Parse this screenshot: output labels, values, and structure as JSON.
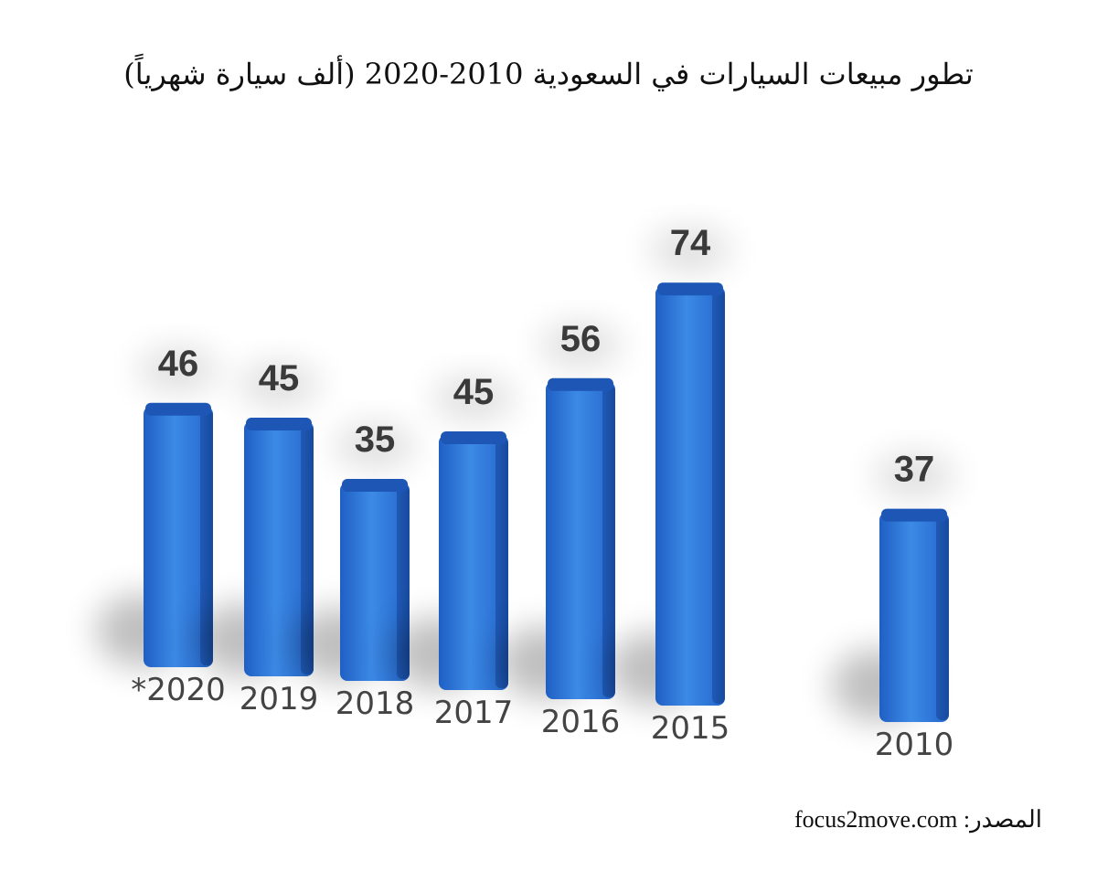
{
  "chart_data": {
    "type": "bar",
    "title": "تطور مبيعات السيارات في السعودية 2010-2020 (ألف سيارة شهرياً)",
    "categories": [
      "*2020",
      "2019",
      "2018",
      "2017",
      "2016",
      "2015",
      "2010"
    ],
    "values": [
      46,
      45,
      35,
      45,
      56,
      74,
      37
    ],
    "color": "#2e74d6",
    "source": "المصدر: focus2move.com"
  }
}
